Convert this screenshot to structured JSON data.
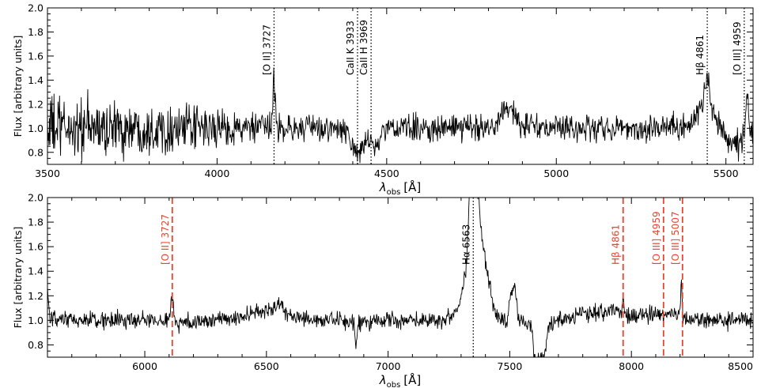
{
  "chart_data": [
    {
      "type": "line",
      "xlabel": "λ",
      "xlabel_sub": "obs",
      "xlabel_unit": "[Å]",
      "ylabel": "Flux [arbitrary units]",
      "xlim": [
        3500,
        5580
      ],
      "ylim": [
        0.7,
        2.0
      ],
      "xticks": [
        "3500",
        "4000",
        "4500",
        "5000",
        "5500"
      ],
      "yticks": [
        "0.8",
        "1.0",
        "1.2",
        "1.4",
        "1.6",
        "1.8",
        "2.0"
      ],
      "grid": false,
      "series": [
        {
          "color": "#000000",
          "noise_sigma": 0.055,
          "noise_sigma_blue": 0.14,
          "profile": [
            [
              3500,
              1.0
            ],
            [
              3700,
              1.0
            ],
            [
              4000,
              1.0
            ],
            [
              4160,
              1.0
            ],
            [
              4168,
              1.47
            ],
            [
              4176,
              1.0
            ],
            [
              4300,
              1.0
            ],
            [
              4380,
              0.98
            ],
            [
              4405,
              0.82
            ],
            [
              4414,
              0.72
            ],
            [
              4425,
              0.82
            ],
            [
              4445,
              0.95
            ],
            [
              4465,
              0.82
            ],
            [
              4478,
              0.9
            ],
            [
              4500,
              1.0
            ],
            [
              4700,
              1.0
            ],
            [
              4820,
              1.02
            ],
            [
              4838,
              1.17
            ],
            [
              4870,
              1.15
            ],
            [
              4895,
              1.02
            ],
            [
              5000,
              1.0
            ],
            [
              5300,
              1.0
            ],
            [
              5400,
              1.04
            ],
            [
              5430,
              1.18
            ],
            [
              5445,
              1.45
            ],
            [
              5455,
              1.2
            ],
            [
              5480,
              1.02
            ],
            [
              5510,
              0.9
            ],
            [
              5540,
              0.86
            ],
            [
              5555,
              0.95
            ],
            [
              5563,
              1.3
            ],
            [
              5571,
              0.95
            ],
            [
              5580,
              0.95
            ]
          ]
        }
      ],
      "lines": [
        {
          "x": 4168,
          "label": "[O II] 3727",
          "color": "#000000",
          "style": "dotted"
        },
        {
          "x": 4414,
          "label": "CaII K 3933",
          "color": "#000000",
          "style": "dotted"
        },
        {
          "x": 4454,
          "label": "CaII H 3969",
          "color": "#000000",
          "style": "dotted"
        },
        {
          "x": 5445,
          "label": "Hβ 4861",
          "color": "#000000",
          "style": "dotted"
        },
        {
          "x": 5554,
          "label": "[O III] 4959",
          "color": "#000000",
          "style": "dotted"
        }
      ]
    },
    {
      "type": "line",
      "xlabel": "λ",
      "xlabel_sub": "obs",
      "xlabel_unit": "[Å]",
      "ylabel": "Flux [arbitrary units]",
      "xlim": [
        5600,
        8500
      ],
      "ylim": [
        0.7,
        2.0
      ],
      "xticks": [
        "6000",
        "6500",
        "7000",
        "7500",
        "8000",
        "8500"
      ],
      "yticks": [
        "0.8",
        "1.0",
        "1.2",
        "1.4",
        "1.6",
        "1.8",
        "2.0"
      ],
      "grid": false,
      "series": [
        {
          "color": "#000000",
          "noise_sigma": 0.035,
          "noise_sigma_blue": 0.035,
          "profile": [
            [
              5600,
              1.25
            ],
            [
              5610,
              1.0
            ],
            [
              5800,
              1.0
            ],
            [
              6000,
              1.0
            ],
            [
              6100,
              1.0
            ],
            [
              6113,
              1.22
            ],
            [
              6125,
              0.98
            ],
            [
              6300,
              1.0
            ],
            [
              6450,
              1.05
            ],
            [
              6560,
              1.13
            ],
            [
              6600,
              1.02
            ],
            [
              6800,
              0.99
            ],
            [
              6860,
              0.98
            ],
            [
              6868,
              0.8
            ],
            [
              6880,
              0.96
            ],
            [
              6900,
              1.0
            ],
            [
              7100,
              1.0
            ],
            [
              7250,
              1.02
            ],
            [
              7290,
              1.1
            ],
            [
              7320,
              1.4
            ],
            [
              7335,
              2.05
            ],
            [
              7370,
              2.05
            ],
            [
              7385,
              1.7
            ],
            [
              7420,
              1.25
            ],
            [
              7440,
              1.05
            ],
            [
              7490,
              1.0
            ],
            [
              7505,
              1.22
            ],
            [
              7525,
              1.25
            ],
            [
              7535,
              1.0
            ],
            [
              7590,
              0.97
            ],
            [
              7600,
              0.7
            ],
            [
              7640,
              0.7
            ],
            [
              7660,
              0.95
            ],
            [
              7700,
              1.0
            ],
            [
              7800,
              1.06
            ],
            [
              7960,
              1.08
            ],
            [
              7966,
              1.22
            ],
            [
              7972,
              1.05
            ],
            [
              8100,
              1.05
            ],
            [
              8200,
              1.05
            ],
            [
              8205,
              1.38
            ],
            [
              8212,
              1.0
            ],
            [
              8350,
              1.0
            ],
            [
              8500,
              1.0
            ]
          ]
        }
      ],
      "lines": [
        {
          "x": 6113,
          "label": "[O II] 3727",
          "color": "#e8452e",
          "style": "dashed"
        },
        {
          "x": 7350,
          "label": "Hα 6563",
          "color": "#000000",
          "style": "dotted"
        },
        {
          "x": 7966,
          "label": "Hβ 4861",
          "color": "#e8452e",
          "style": "dashed"
        },
        {
          "x": 8132,
          "label": "[O III] 4959",
          "color": "#e8452e",
          "style": "dashed"
        },
        {
          "x": 8210,
          "label": "[O III] 5007",
          "color": "#e8452e",
          "style": "dashed"
        }
      ]
    }
  ]
}
